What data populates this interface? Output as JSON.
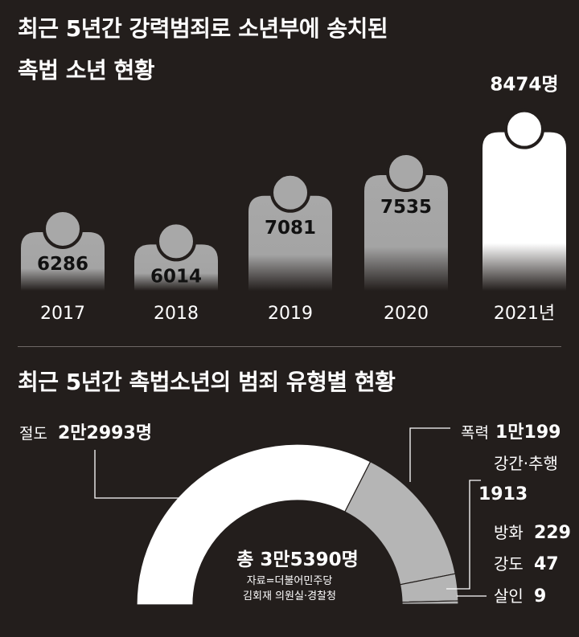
{
  "title_line1": "최근 5년간 강력범죄로 소년부에 송치된",
  "title_line2": "촉법 소년 현황",
  "section2_title": "최근 5년간 촉법소년의 범죄 유형별 현황",
  "source_line1": "자료=더불어민주당",
  "source_line2": "김회재 의원실·경찰청",
  "colors": {
    "background": "#231e1c",
    "figure_gray": "#a8a8a8",
    "figure_highlight": "#ffffff",
    "slice_main": "#ffffff",
    "slice_other": "#b5b5b5"
  },
  "chart_data": [
    {
      "type": "bar",
      "categories": [
        "2017",
        "2018",
        "2019",
        "2020",
        "2021년"
      ],
      "values": [
        6286,
        6014,
        7081,
        7535,
        8474
      ],
      "value_labels": [
        "6286",
        "6014",
        "7081",
        "7535",
        "8474명"
      ],
      "highlight_index": 4,
      "title": "최근 5년간 강력범죄로 소년부에 송치된 촉법 소년 현황"
    },
    {
      "type": "pie",
      "style": "half-donut",
      "title": "최근 5년간 촉법소년의 범죄 유형별 현황",
      "total_label": "총 3만5390명",
      "total": 35390,
      "slices": [
        {
          "name": "절도",
          "value": 22993,
          "value_label": "2만2993명"
        },
        {
          "name": "폭력",
          "value": 10199,
          "value_label": "1만199"
        },
        {
          "name": "강간·추행",
          "value": 1913,
          "value_label": "1913"
        },
        {
          "name": "방화",
          "value": 229,
          "value_label": "229"
        },
        {
          "name": "강도",
          "value": 47,
          "value_label": "47"
        },
        {
          "name": "살인",
          "value": 9,
          "value_label": "9"
        }
      ]
    }
  ]
}
